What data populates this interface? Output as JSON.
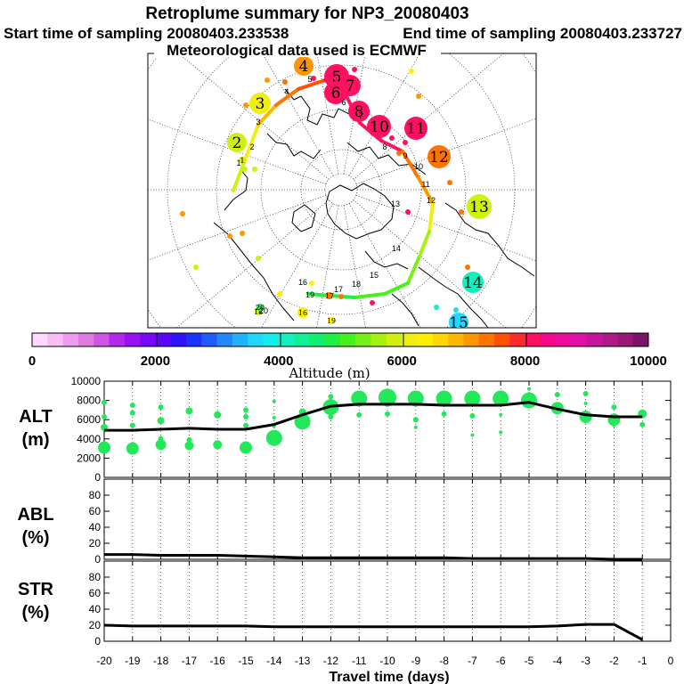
{
  "header": {
    "title": "Retroplume summary for NP3_20080403",
    "start_label": "Start time of sampling 20080403.233538",
    "end_label": "End time of sampling 20080403.233727",
    "met_label": "Meteorological data used is ECMWF"
  },
  "colorbar": {
    "ticks": [
      "0",
      "2000",
      "4000",
      "6000",
      "8000",
      "10000"
    ],
    "label": "Altitude (m)",
    "colors": [
      "#ffd9ff",
      "#f7bdf7",
      "#ee9cee",
      "#e07be0",
      "#cf55e6",
      "#b627ee",
      "#9a10f5",
      "#7a08f8",
      "#5a06fb",
      "#3010fd",
      "#1a33ff",
      "#1f5cff",
      "#2288ff",
      "#20b2ff",
      "#20d8ff",
      "#10f0e8",
      "#10f0c0",
      "#10f098",
      "#10f070",
      "#20f040",
      "#48f020",
      "#78f018",
      "#a8f010",
      "#d0f010",
      "#f0f010",
      "#fff000",
      "#ffd800",
      "#ffb800",
      "#ff9600",
      "#ff7400",
      "#ff5000",
      "#ff2a2a",
      "#ff1060",
      "#f80888",
      "#f00aa0",
      "#e010a8",
      "#c8149c",
      "#b01888",
      "#981878",
      "#7a1468"
    ]
  },
  "map": {
    "track_labels": [
      "1",
      "2",
      "3",
      "4",
      "5",
      "6",
      "7",
      "8",
      "9",
      "10",
      "11",
      "12",
      "13",
      "14",
      "15",
      "16",
      "17",
      "18",
      "19",
      "20"
    ],
    "bubbles": [
      {
        "label": "1",
        "r": 4,
        "color": "#d0f010"
      },
      {
        "label": "2",
        "r": 11,
        "color": "#d0f010"
      },
      {
        "label": "3",
        "r": 12,
        "color": "#f0f010"
      },
      {
        "label": "4",
        "r": 11,
        "color": "#ff9600"
      },
      {
        "label": "5",
        "r": 14,
        "color": "#ff1060"
      },
      {
        "label": "6",
        "r": 13,
        "color": "#ff1060"
      },
      {
        "label": "7",
        "r": 12,
        "color": "#ff1060"
      },
      {
        "label": "8",
        "r": 12,
        "color": "#ff1060"
      },
      {
        "label": "9",
        "r": 12,
        "color": "#ff1060"
      },
      {
        "label": "10",
        "r": 13,
        "color": "#ff1060"
      },
      {
        "label": "11",
        "r": 13,
        "color": "#ff1060"
      },
      {
        "label": "12",
        "r": 13,
        "color": "#ff7400"
      },
      {
        "label": "13",
        "r": 14,
        "color": "#d0f010"
      },
      {
        "label": "14",
        "r": 12,
        "color": "#10f0c0"
      },
      {
        "label": "15",
        "r": 11,
        "color": "#20d8ff"
      },
      {
        "label": "16",
        "r": 6,
        "color": "#fff000"
      },
      {
        "label": "17",
        "r": 4,
        "color": "#ff7400"
      },
      {
        "label": "18",
        "r": 4,
        "color": "#d0f010"
      },
      {
        "label": "19",
        "r": 4,
        "color": "#fff000"
      },
      {
        "label": "20",
        "r": 4,
        "color": "#20f040"
      }
    ]
  },
  "chart_data": [
    {
      "type": "line",
      "panel": "ALT",
      "ylabel_top": "ALT",
      "ylabel_bottom": "(m)",
      "xlabel": "Travel time (days)",
      "x_ticks": [
        "-20",
        "-19",
        "-18",
        "-17",
        "-16",
        "-15",
        "-14",
        "-13",
        "-12",
        "-11",
        "-10",
        "-9",
        "-8",
        "-7",
        "-6",
        "-5",
        "-4",
        "-3",
        "-2",
        "-1",
        "0"
      ],
      "y_ticks": [
        "0",
        "2000",
        "4000",
        "6000",
        "8000",
        "10000"
      ],
      "ylim": [
        0,
        10000
      ],
      "xlim": [
        -20,
        0
      ],
      "x": [
        -20,
        -19,
        -18,
        -17,
        -16,
        -15,
        -14,
        -13,
        -12,
        -11,
        -10,
        -9,
        -8,
        -7,
        -6,
        -5,
        -4,
        -3,
        -2,
        -1
      ],
      "mean": [
        4900,
        4900,
        5000,
        5100,
        5000,
        5000,
        5500,
        6500,
        7400,
        7600,
        7600,
        7600,
        7500,
        7500,
        7500,
        7800,
        7100,
        6500,
        6300,
        6300
      ],
      "clusters": [
        {
          "x": -20,
          "y": 3100,
          "size": 7
        },
        {
          "x": -20,
          "y": 5200,
          "size": 4
        },
        {
          "x": -20,
          "y": 6300,
          "size": 3
        },
        {
          "x": -20,
          "y": 7800,
          "size": 3
        },
        {
          "x": -19,
          "y": 3000,
          "size": 7
        },
        {
          "x": -19,
          "y": 5400,
          "size": 3
        },
        {
          "x": -19,
          "y": 6700,
          "size": 3
        },
        {
          "x": -19,
          "y": 7500,
          "size": 3
        },
        {
          "x": -18,
          "y": 3400,
          "size": 6
        },
        {
          "x": -18,
          "y": 4000,
          "size": 3
        },
        {
          "x": -18,
          "y": 5900,
          "size": 4
        },
        {
          "x": -18,
          "y": 7300,
          "size": 3
        },
        {
          "x": -17,
          "y": 3300,
          "size": 5
        },
        {
          "x": -17,
          "y": 3900,
          "size": 3
        },
        {
          "x": -17,
          "y": 6900,
          "size": 4
        },
        {
          "x": -16,
          "y": 3400,
          "size": 5
        },
        {
          "x": -16,
          "y": 6500,
          "size": 4
        },
        {
          "x": -15,
          "y": 3100,
          "size": 7
        },
        {
          "x": -15,
          "y": 5400,
          "size": 3
        },
        {
          "x": -15,
          "y": 6300,
          "size": 3
        },
        {
          "x": -15,
          "y": 7000,
          "size": 3
        },
        {
          "x": -14,
          "y": 4100,
          "size": 9
        },
        {
          "x": -14,
          "y": 5300,
          "size": 2
        },
        {
          "x": -14,
          "y": 6200,
          "size": 2
        },
        {
          "x": -14,
          "y": 7900,
          "size": 2
        },
        {
          "x": -13,
          "y": 5800,
          "size": 9
        },
        {
          "x": -13,
          "y": 6800,
          "size": 4
        },
        {
          "x": -12,
          "y": 7300,
          "size": 9
        },
        {
          "x": -12,
          "y": 6300,
          "size": 3
        },
        {
          "x": -12,
          "y": 8400,
          "size": 3
        },
        {
          "x": -11,
          "y": 8200,
          "size": 9
        },
        {
          "x": -11,
          "y": 6500,
          "size": 3
        },
        {
          "x": -10,
          "y": 8300,
          "size": 10
        },
        {
          "x": -10,
          "y": 6600,
          "size": 3
        },
        {
          "x": -9,
          "y": 8200,
          "size": 9
        },
        {
          "x": -9,
          "y": 6000,
          "size": 3
        },
        {
          "x": -9,
          "y": 5200,
          "size": 2
        },
        {
          "x": -8,
          "y": 8200,
          "size": 9
        },
        {
          "x": -8,
          "y": 6600,
          "size": 3
        },
        {
          "x": -7,
          "y": 8200,
          "size": 9
        },
        {
          "x": -7,
          "y": 6400,
          "size": 3
        },
        {
          "x": -7,
          "y": 4400,
          "size": 2
        },
        {
          "x": -6,
          "y": 8200,
          "size": 9
        },
        {
          "x": -6,
          "y": 6500,
          "size": 2
        },
        {
          "x": -6,
          "y": 4700,
          "size": 2
        },
        {
          "x": -5,
          "y": 8000,
          "size": 9
        },
        {
          "x": -5,
          "y": 9200,
          "size": 2
        },
        {
          "x": -4,
          "y": 7200,
          "size": 7
        },
        {
          "x": -4,
          "y": 8600,
          "size": 3
        },
        {
          "x": -3,
          "y": 6300,
          "size": 7
        },
        {
          "x": -3,
          "y": 8700,
          "size": 3
        },
        {
          "x": -3,
          "y": 7700,
          "size": 2
        },
        {
          "x": -2,
          "y": 6000,
          "size": 7
        },
        {
          "x": -2,
          "y": 7300,
          "size": 3
        },
        {
          "x": -2,
          "y": 5400,
          "size": 2
        },
        {
          "x": -1,
          "y": 6600,
          "size": 5
        },
        {
          "x": -1,
          "y": 5500,
          "size": 3
        }
      ]
    },
    {
      "type": "line",
      "panel": "ABL",
      "ylabel_top": "ABL",
      "ylabel_bottom": "(%)",
      "y_ticks": [
        "0",
        "20",
        "40",
        "60",
        "80"
      ],
      "ylim": [
        0,
        100
      ],
      "xlim": [
        -20,
        0
      ],
      "x": [
        -20,
        -19,
        -18,
        -17,
        -16,
        -15,
        -14,
        -13,
        -12,
        -11,
        -10,
        -9,
        -8,
        -7,
        -6,
        -5,
        -4,
        -3,
        -2,
        -1
      ],
      "values": [
        6,
        6,
        5,
        5,
        5,
        4,
        3,
        2,
        2,
        2,
        2,
        2,
        2,
        1,
        1,
        1,
        1,
        1,
        0,
        0
      ]
    },
    {
      "type": "line",
      "panel": "STR",
      "ylabel_top": "STR",
      "ylabel_bottom": "(%)",
      "y_ticks": [
        "0",
        "20",
        "40",
        "60",
        "80"
      ],
      "ylim": [
        0,
        100
      ],
      "xlim": [
        -20,
        0
      ],
      "x": [
        -20,
        -19,
        -18,
        -17,
        -16,
        -15,
        -14,
        -13,
        -12,
        -11,
        -10,
        -9,
        -8,
        -7,
        -6,
        -5,
        -4,
        -3,
        -2,
        -1
      ],
      "values": [
        20,
        19,
        19,
        19,
        19,
        19,
        18,
        18,
        18,
        18,
        18,
        18,
        18,
        18,
        18,
        18,
        19,
        21,
        21,
        2
      ]
    }
  ]
}
